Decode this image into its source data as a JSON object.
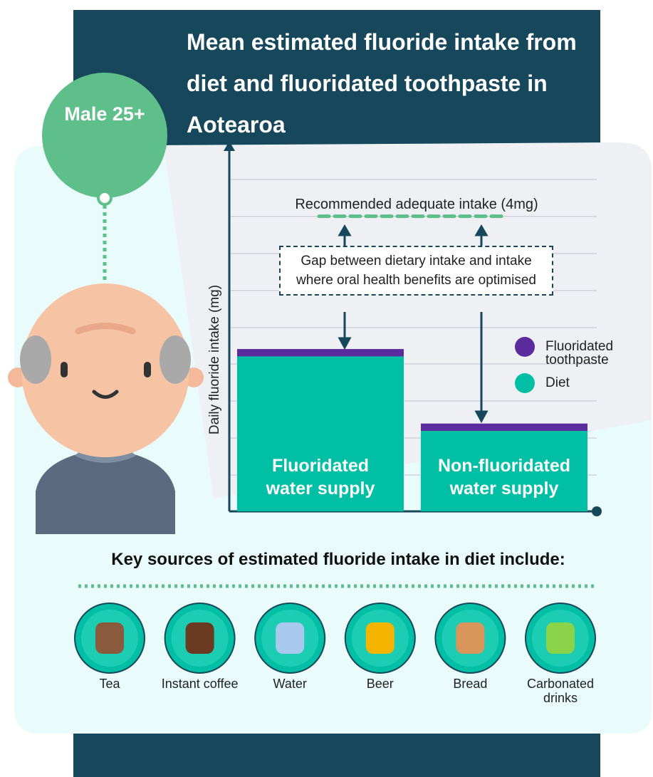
{
  "title": "Mean estimated fluoride intake from diet and fluoridated toothpaste in Aotearoa",
  "badge": "Male 25+",
  "chart_data": {
    "type": "stacked_bar",
    "ylabel": "Daily fluoride intake (mg)",
    "categories": [
      "Fluoridated water supply",
      "Non-fluoridated water supply"
    ],
    "series": [
      {
        "name": "Diet",
        "color": "#00bfa5",
        "values": [
          2.1,
          1.09
        ]
      },
      {
        "name": "Fluoridated toothpaste",
        "color": "#5b2c9e",
        "values": [
          0.1,
          0.1
        ]
      }
    ],
    "ylim": [
      0,
      5
    ],
    "reference": {
      "label": "Recommended adequate intake (4mg)",
      "value": 4,
      "color": "#5fbf8a"
    },
    "annotation": "Gap between dietary intake and intake where oral health benefits are optimised"
  },
  "sources": {
    "title": "Key sources of estimated fluoride intake in diet include:",
    "items": [
      "Tea",
      "Instant coffee",
      "Water",
      "Beer",
      "Bread",
      "Carbonated drinks"
    ]
  }
}
